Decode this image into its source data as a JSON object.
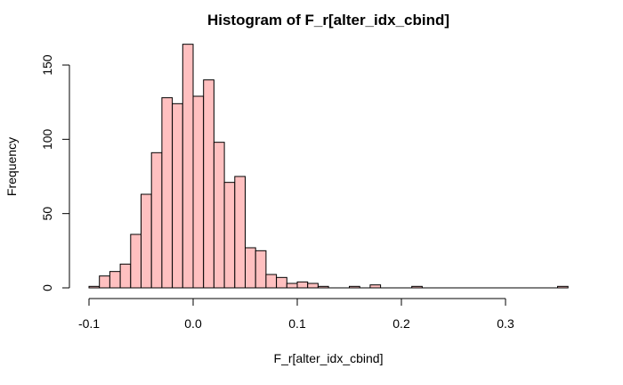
{
  "chart_data": {
    "type": "bar",
    "title": "Histogram of F_r[alter_idx_cbind]",
    "xlabel": "F_r[alter_idx_cbind]",
    "ylabel": "Frequency",
    "bar_color": "#FFC0C0",
    "edge_color": "#000000",
    "bin_width": 0.01,
    "bin_start": -0.1,
    "xlim": [
      -0.1,
      0.36
    ],
    "ylim": [
      0,
      165
    ],
    "x_ticks": [
      -0.1,
      0.0,
      0.1,
      0.2,
      0.3
    ],
    "x_tick_labels": [
      "-0.1",
      "0.0",
      "0.1",
      "0.2",
      "0.3"
    ],
    "y_ticks": [
      0,
      50,
      100,
      150
    ],
    "y_tick_labels": [
      "0",
      "50",
      "100",
      "150"
    ],
    "values": [
      1,
      8,
      11,
      16,
      36,
      63,
      91,
      128,
      124,
      164,
      129,
      140,
      98,
      71,
      75,
      27,
      25,
      9,
      7,
      3,
      4,
      3,
      1,
      0,
      0,
      1,
      0,
      2,
      0,
      0,
      0,
      1,
      0,
      0,
      0,
      0,
      0,
      0,
      0,
      0,
      0,
      0,
      0,
      0,
      0,
      1
    ]
  }
}
